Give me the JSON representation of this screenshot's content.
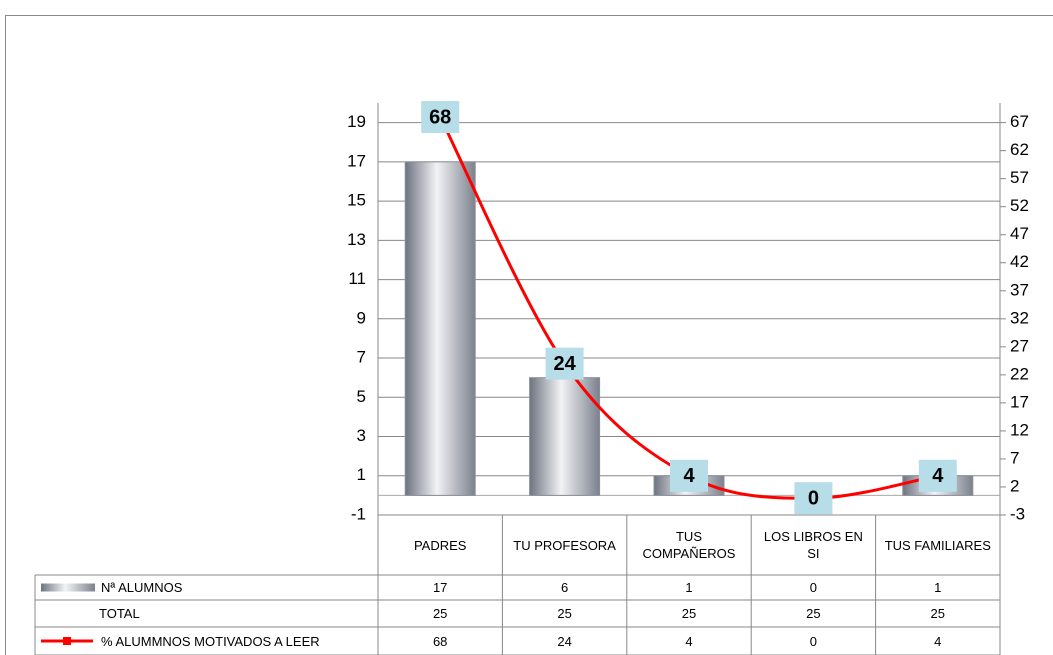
{
  "chart_data": {
    "type": "bar",
    "categories": [
      "PADRES",
      "TU PROFESORA",
      "TUS COMPAÑEROS",
      "LOS LIBROS EN SI",
      "TUS FAMILIARES"
    ],
    "series": [
      {
        "name": "Nª ALUMNOS",
        "color": "#9ea3ad",
        "values": [
          17,
          6,
          1,
          0,
          1
        ]
      },
      {
        "name": "TOTAL",
        "values": [
          25,
          25,
          25,
          25,
          25
        ]
      },
      {
        "name": "% ALUMMNOS MOTIVADOS A LEER",
        "type": "line",
        "axis": "y2",
        "color": "#ff0000",
        "values": [
          68,
          24,
          4,
          0,
          4
        ]
      }
    ],
    "ylim": [
      -1,
      20
    ],
    "yticks": [
      -1,
      1,
      3,
      5,
      7,
      9,
      11,
      13,
      15,
      17,
      19
    ],
    "y2lim": [
      -3,
      70.5
    ],
    "y2ticks": [
      -3,
      2,
      7,
      12,
      17,
      22,
      27,
      32,
      37,
      42,
      47,
      52,
      57,
      62,
      67
    ],
    "grid": true
  }
}
